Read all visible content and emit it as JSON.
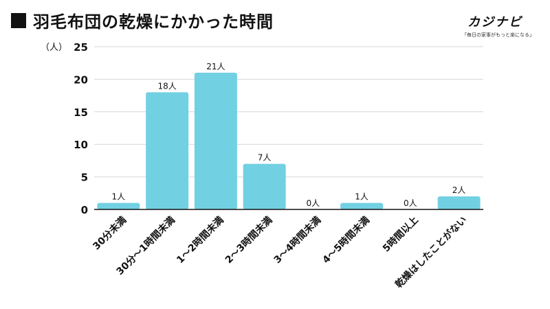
{
  "header": {
    "title": "羽毛布団の乾燥にかかった時間"
  },
  "brand": {
    "name": "カジナビ",
    "tagline": "「毎日の家事がもっと楽になる」"
  },
  "colors": {
    "bar": "#72D0E3",
    "grid": "#d6d6d6",
    "axis": "#111111",
    "text": "#111111"
  },
  "chart_data": {
    "type": "bar",
    "title": "羽毛布団の乾燥にかかった時間",
    "ylabel": "（人）",
    "xlabel": "",
    "ylim": [
      0,
      25
    ],
    "yticks": [
      0,
      5,
      10,
      15,
      20,
      25
    ],
    "grid": true,
    "categories": [
      "30分未満",
      "30分〜1時間未満",
      "1〜2時間未満",
      "2〜3時間未満",
      "3〜4時間未満",
      "4〜5時間未満",
      "5時間以上",
      "乾燥はしたことがない"
    ],
    "values": [
      1,
      18,
      21,
      7,
      0,
      1,
      0,
      2
    ],
    "data_labels": [
      "1人",
      "18人",
      "21人",
      "7人",
      "0人",
      "1人",
      "0人",
      "2人"
    ]
  }
}
